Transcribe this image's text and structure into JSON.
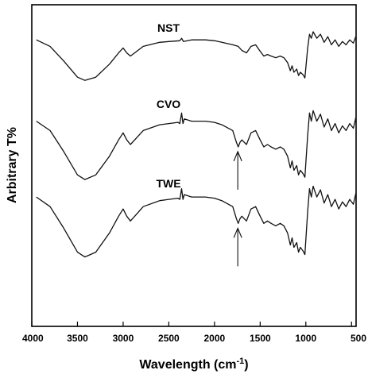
{
  "chart_data": {
    "type": "line",
    "title": "",
    "xlabel": "Wavelength (cm",
    "xlabel_sup": "-1",
    "xlabel_close": ")",
    "ylabel": "Arbitrary T%",
    "xlim": [
      4000,
      450
    ],
    "x_reversed": true,
    "y_ticks_shown": false,
    "grid": false,
    "x_ticks": [
      4000,
      3500,
      3000,
      2500,
      2000,
      1500,
      1000,
      500
    ],
    "x_tick_labels": [
      "4000",
      "3500",
      "3000",
      "2500",
      "2000",
      "1500",
      "1000",
      "500"
    ],
    "series": [
      {
        "name": "NST",
        "x": [
          3950,
          3800,
          3650,
          3500,
          3420,
          3300,
          3150,
          3050,
          3000,
          2960,
          2920,
          2850,
          2780,
          2600,
          2500,
          2380,
          2360,
          2340,
          2250,
          2100,
          2000,
          1920,
          1800,
          1740,
          1700,
          1650,
          1600,
          1550,
          1500,
          1460,
          1420,
          1380,
          1330,
          1280,
          1240,
          1200,
          1170,
          1150,
          1130,
          1100,
          1080,
          1060,
          1030,
          1010,
          980,
          960,
          940,
          920,
          880,
          840,
          800,
          760,
          720,
          680,
          640,
          600,
          560,
          520,
          480,
          450
        ],
        "values": [
          0.88,
          0.8,
          0.62,
          0.42,
          0.38,
          0.42,
          0.58,
          0.72,
          0.78,
          0.72,
          0.68,
          0.74,
          0.8,
          0.85,
          0.86,
          0.87,
          0.9,
          0.86,
          0.88,
          0.88,
          0.87,
          0.85,
          0.82,
          0.8,
          0.75,
          0.72,
          0.8,
          0.82,
          0.74,
          0.68,
          0.7,
          0.68,
          0.66,
          0.68,
          0.66,
          0.6,
          0.5,
          0.56,
          0.48,
          0.52,
          0.44,
          0.48,
          0.45,
          0.41,
          0.78,
          0.95,
          0.9,
          0.98,
          0.9,
          0.95,
          0.85,
          0.92,
          0.82,
          0.88,
          0.8,
          0.86,
          0.82,
          0.88,
          0.84,
          0.93
        ]
      },
      {
        "name": "CVO",
        "x": [
          3950,
          3800,
          3650,
          3500,
          3420,
          3300,
          3150,
          3050,
          3000,
          2960,
          2920,
          2850,
          2780,
          2600,
          2500,
          2400,
          2380,
          2360,
          2345,
          2330,
          2250,
          2100,
          2000,
          1920,
          1800,
          1760,
          1740,
          1720,
          1700,
          1650,
          1600,
          1550,
          1500,
          1460,
          1420,
          1380,
          1330,
          1280,
          1240,
          1200,
          1170,
          1150,
          1130,
          1100,
          1080,
          1060,
          1030,
          1010,
          980,
          960,
          940,
          920,
          880,
          840,
          800,
          760,
          720,
          680,
          640,
          600,
          560,
          520,
          480,
          450
        ],
        "values": [
          0.88,
          0.8,
          0.62,
          0.42,
          0.38,
          0.42,
          0.58,
          0.72,
          0.78,
          0.72,
          0.68,
          0.74,
          0.8,
          0.85,
          0.86,
          0.87,
          0.86,
          0.95,
          0.86,
          0.9,
          0.88,
          0.88,
          0.87,
          0.85,
          0.8,
          0.7,
          0.66,
          0.7,
          0.72,
          0.68,
          0.78,
          0.8,
          0.72,
          0.66,
          0.68,
          0.66,
          0.64,
          0.66,
          0.64,
          0.58,
          0.48,
          0.54,
          0.46,
          0.5,
          0.42,
          0.46,
          0.43,
          0.4,
          0.76,
          0.95,
          0.88,
          0.97,
          0.88,
          0.94,
          0.83,
          0.9,
          0.8,
          0.86,
          0.78,
          0.84,
          0.8,
          0.86,
          0.82,
          0.92
        ]
      },
      {
        "name": "TWE",
        "x": [
          3950,
          3800,
          3650,
          3500,
          3420,
          3300,
          3150,
          3050,
          3000,
          2960,
          2920,
          2850,
          2780,
          2600,
          2500,
          2400,
          2380,
          2360,
          2345,
          2330,
          2250,
          2100,
          2000,
          1920,
          1800,
          1760,
          1740,
          1720,
          1700,
          1650,
          1600,
          1550,
          1500,
          1460,
          1420,
          1380,
          1330,
          1280,
          1240,
          1200,
          1170,
          1150,
          1130,
          1100,
          1080,
          1060,
          1030,
          1010,
          980,
          960,
          940,
          920,
          880,
          840,
          800,
          760,
          720,
          680,
          640,
          600,
          560,
          520,
          480,
          450
        ],
        "values": [
          0.88,
          0.8,
          0.62,
          0.42,
          0.38,
          0.42,
          0.58,
          0.72,
          0.78,
          0.72,
          0.68,
          0.74,
          0.8,
          0.85,
          0.86,
          0.87,
          0.86,
          0.95,
          0.86,
          0.9,
          0.88,
          0.88,
          0.87,
          0.85,
          0.8,
          0.7,
          0.66,
          0.7,
          0.72,
          0.68,
          0.78,
          0.8,
          0.72,
          0.66,
          0.68,
          0.66,
          0.64,
          0.66,
          0.64,
          0.58,
          0.48,
          0.54,
          0.46,
          0.5,
          0.42,
          0.46,
          0.43,
          0.4,
          0.76,
          0.95,
          0.88,
          0.97,
          0.88,
          0.94,
          0.83,
          0.9,
          0.8,
          0.86,
          0.78,
          0.84,
          0.8,
          0.86,
          0.82,
          0.92
        ]
      }
    ],
    "annotations": [
      {
        "series": "CVO",
        "type": "arrow-up",
        "x": 1745
      },
      {
        "series": "TWE",
        "type": "arrow-up",
        "x": 1745
      }
    ],
    "colors": {
      "line": "#111111",
      "axis": "#000000",
      "background": "#ffffff"
    }
  }
}
